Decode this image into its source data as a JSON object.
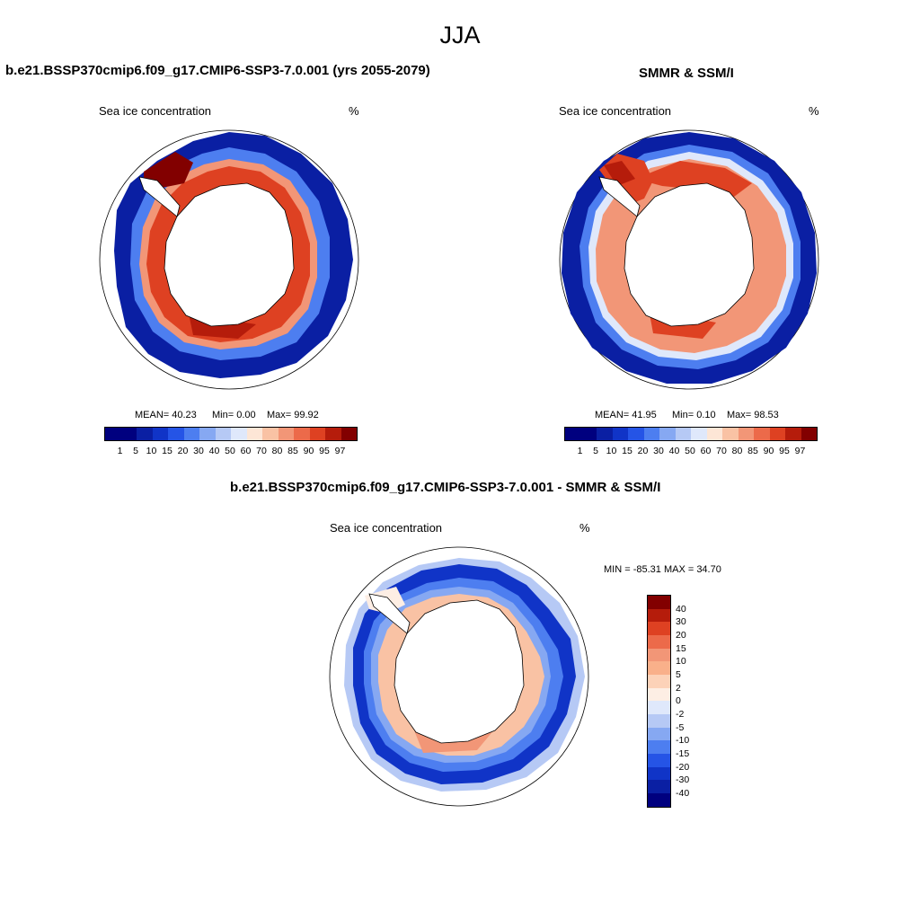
{
  "title": "JJA",
  "panels": [
    {
      "title": "b.e21.BSSP370cmip6.f09_g17.CMIP6-SSP3-7.0.001 (yrs 2055-2079)",
      "variable": "Sea ice concentration",
      "units": "%",
      "stats": {
        "mean": "MEAN=  40.23",
        "min": "Min=   0.00",
        "max": "Max=  99.92"
      }
    },
    {
      "title": "SMMR & SSM/I",
      "variable": "Sea ice concentration",
      "units": "%",
      "stats": {
        "mean": "MEAN=  41.95",
        "min": "Min=   0.10",
        "max": "Max=  98.53"
      }
    },
    {
      "title": "b.e21.BSSP370cmip6.f09_g17.CMIP6-SSP3-7.0.001 - SMMR & SSM/I",
      "variable": "Sea ice concentration",
      "units": "%",
      "range_label": "MIN = -85.31 MAX =  34.70"
    }
  ],
  "colorbar_top": {
    "ticks": [
      "1",
      "5",
      "10",
      "15",
      "20",
      "30",
      "40",
      "50",
      "60",
      "70",
      "80",
      "85",
      "90",
      "95",
      "97"
    ],
    "colors": [
      "#00007f",
      "#0a1fa3",
      "#1034c7",
      "#2554e6",
      "#4d7ef0",
      "#86a8f2",
      "#b6c9f5",
      "#dfe8fb",
      "#fde6d6",
      "#f9c2a4",
      "#f29677",
      "#ec6a4a",
      "#de4122",
      "#b51c0b",
      "#820000"
    ]
  },
  "colorbar_diff": {
    "ticks": [
      "40",
      "30",
      "20",
      "15",
      "10",
      "5",
      "2",
      "0",
      "-2",
      "-5",
      "-10",
      "-15",
      "-20",
      "-30",
      "-40"
    ],
    "colors": [
      "#820000",
      "#b51c0b",
      "#de4122",
      "#ec6a4a",
      "#f29677",
      "#f9b08a",
      "#fcd2b8",
      "#fdeee4",
      "#dfe8fb",
      "#b6c9f5",
      "#86a8f2",
      "#4d7ef0",
      "#2554e6",
      "#1034c7",
      "#0a1fa3",
      "#00007f"
    ]
  }
}
